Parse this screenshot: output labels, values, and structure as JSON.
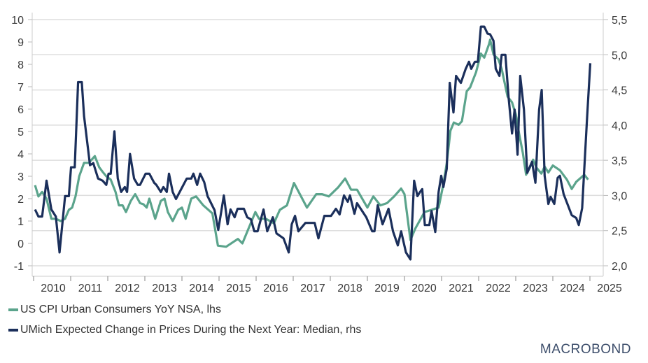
{
  "chart_data": {
    "type": "line",
    "title": "",
    "xlabel": "",
    "x_ticks": [
      "2010",
      "2011",
      "2012",
      "2013",
      "2014",
      "2015",
      "2016",
      "2017",
      "2018",
      "2019",
      "2020",
      "2021",
      "2022",
      "2023",
      "2024",
      "2025"
    ],
    "xlim": [
      2010,
      2025.3
    ],
    "y_left": {
      "ylim": [
        -1,
        10
      ],
      "ticks": [
        "-1",
        "0",
        "1",
        "2",
        "3",
        "4",
        "5",
        "6",
        "7",
        "8",
        "9",
        "10"
      ]
    },
    "y_right": {
      "ylim": [
        2.0,
        5.5
      ],
      "ticks": [
        "2,0",
        "2,5",
        "3,0",
        "3,5",
        "4,0",
        "4,5",
        "5,0",
        "5,5"
      ]
    },
    "grid": true,
    "legend_placement": "bottom-left",
    "series": [
      {
        "name": "US CPI Urban Consumers YoY NSA, lhs",
        "axis": "left",
        "color": "#5ba48c",
        "points": [
          [
            2010.04,
            2.6
          ],
          [
            2010.13,
            2.1
          ],
          [
            2010.23,
            2.3
          ],
          [
            2010.35,
            2.0
          ],
          [
            2010.48,
            1.1
          ],
          [
            2010.6,
            1.1
          ],
          [
            2010.73,
            1.0
          ],
          [
            2010.85,
            1.1
          ],
          [
            2010.95,
            1.5
          ],
          [
            2011.04,
            1.6
          ],
          [
            2011.13,
            2.1
          ],
          [
            2011.23,
            3.0
          ],
          [
            2011.36,
            3.6
          ],
          [
            2011.49,
            3.6
          ],
          [
            2011.65,
            3.9
          ],
          [
            2011.77,
            3.4
          ],
          [
            2011.86,
            3.2
          ],
          [
            2011.96,
            3.0
          ],
          [
            2012.08,
            2.85
          ],
          [
            2012.21,
            2.3
          ],
          [
            2012.3,
            1.7
          ],
          [
            2012.4,
            1.7
          ],
          [
            2012.49,
            1.4
          ],
          [
            2012.62,
            1.9
          ],
          [
            2012.74,
            2.2
          ],
          [
            2012.87,
            1.8
          ],
          [
            2012.96,
            1.75
          ],
          [
            2013.05,
            1.6
          ],
          [
            2013.12,
            2.0
          ],
          [
            2013.28,
            1.1
          ],
          [
            2013.43,
            1.9
          ],
          [
            2013.53,
            2.0
          ],
          [
            2013.62,
            1.4
          ],
          [
            2013.75,
            1.0
          ],
          [
            2013.9,
            1.5
          ],
          [
            2014.0,
            1.6
          ],
          [
            2014.1,
            1.1
          ],
          [
            2014.25,
            2.0
          ],
          [
            2014.38,
            2.1
          ],
          [
            2014.57,
            1.71
          ],
          [
            2014.82,
            1.34
          ],
          [
            2014.97,
            -0.1
          ],
          [
            2015.19,
            -0.15
          ],
          [
            2015.51,
            0.2
          ],
          [
            2015.63,
            0.0
          ],
          [
            2015.98,
            1.4
          ],
          [
            2016.08,
            1.1
          ],
          [
            2016.26,
            1.1
          ],
          [
            2016.48,
            0.9
          ],
          [
            2016.64,
            1.5
          ],
          [
            2016.83,
            1.7
          ],
          [
            2017.02,
            2.7
          ],
          [
            2017.37,
            1.6
          ],
          [
            2017.62,
            2.2
          ],
          [
            2017.78,
            2.2
          ],
          [
            2017.96,
            2.1
          ],
          [
            2018.21,
            2.5
          ],
          [
            2018.4,
            2.9
          ],
          [
            2018.56,
            2.4
          ],
          [
            2018.72,
            2.4
          ],
          [
            2019.0,
            1.6
          ],
          [
            2019.16,
            2.1
          ],
          [
            2019.35,
            1.7
          ],
          [
            2019.53,
            1.8
          ],
          [
            2019.72,
            2.1
          ],
          [
            2019.91,
            2.45
          ],
          [
            2020.0,
            2.2
          ],
          [
            2020.16,
            0.15
          ],
          [
            2020.29,
            0.66
          ],
          [
            2020.54,
            1.4
          ],
          [
            2020.73,
            1.5
          ],
          [
            2020.92,
            1.6
          ],
          [
            2021.05,
            2.65
          ],
          [
            2021.14,
            3.58
          ],
          [
            2021.24,
            5.04
          ],
          [
            2021.33,
            5.4
          ],
          [
            2021.46,
            5.3
          ],
          [
            2021.55,
            5.46
          ],
          [
            2021.68,
            6.8
          ],
          [
            2021.77,
            6.97
          ],
          [
            2021.93,
            7.65
          ],
          [
            2022.06,
            8.48
          ],
          [
            2022.15,
            8.3
          ],
          [
            2022.28,
            8.9
          ],
          [
            2022.31,
            9.1
          ],
          [
            2022.4,
            8.44
          ],
          [
            2022.53,
            8.23
          ],
          [
            2022.62,
            7.8
          ],
          [
            2022.78,
            6.56
          ],
          [
            2022.9,
            6.3
          ],
          [
            2023.0,
            5.77
          ],
          [
            2023.09,
            4.9
          ],
          [
            2023.19,
            4.05
          ],
          [
            2023.28,
            3.07
          ],
          [
            2023.38,
            3.38
          ],
          [
            2023.47,
            3.74
          ],
          [
            2023.56,
            3.38
          ],
          [
            2023.69,
            3.12
          ],
          [
            2023.78,
            3.43
          ],
          [
            2023.88,
            3.17
          ],
          [
            2024.0,
            3.48
          ],
          [
            2024.19,
            3.27
          ],
          [
            2024.38,
            2.85
          ],
          [
            2024.51,
            2.43
          ],
          [
            2024.63,
            2.75
          ],
          [
            2024.85,
            3.07
          ],
          [
            2024.95,
            2.85
          ]
        ]
      },
      {
        "name": "UMich Expected Change in Prices During the Next Year: Median, rhs",
        "axis": "right",
        "color": "#1b2f5b",
        "points": [
          [
            2010.04,
            2.8
          ],
          [
            2010.13,
            2.7
          ],
          [
            2010.23,
            2.7
          ],
          [
            2010.35,
            3.21
          ],
          [
            2010.48,
            2.8
          ],
          [
            2010.6,
            2.7
          ],
          [
            2010.7,
            2.19
          ],
          [
            2010.85,
            2.99
          ],
          [
            2010.95,
            2.99
          ],
          [
            2011.01,
            3.4
          ],
          [
            2011.11,
            3.4
          ],
          [
            2011.2,
            4.61
          ],
          [
            2011.3,
            4.61
          ],
          [
            2011.36,
            4.13
          ],
          [
            2011.52,
            3.43
          ],
          [
            2011.61,
            3.46
          ],
          [
            2011.74,
            3.24
          ],
          [
            2011.86,
            3.21
          ],
          [
            2011.96,
            3.15
          ],
          [
            2012.02,
            3.31
          ],
          [
            2012.08,
            3.31
          ],
          [
            2012.18,
            3.91
          ],
          [
            2012.27,
            3.24
          ],
          [
            2012.36,
            3.05
          ],
          [
            2012.46,
            3.12
          ],
          [
            2012.52,
            3.05
          ],
          [
            2012.6,
            3.59
          ],
          [
            2012.71,
            3.24
          ],
          [
            2012.81,
            3.15
          ],
          [
            2012.87,
            3.15
          ],
          [
            2013.02,
            3.31
          ],
          [
            2013.12,
            3.31
          ],
          [
            2013.25,
            3.18
          ],
          [
            2013.31,
            3.15
          ],
          [
            2013.43,
            3.05
          ],
          [
            2013.5,
            3.12
          ],
          [
            2013.59,
            3.05
          ],
          [
            2013.65,
            3.31
          ],
          [
            2013.75,
            3.05
          ],
          [
            2013.84,
            2.95
          ],
          [
            2013.97,
            3.08
          ],
          [
            2014.13,
            3.24
          ],
          [
            2014.25,
            3.24
          ],
          [
            2014.31,
            3.31
          ],
          [
            2014.41,
            3.15
          ],
          [
            2014.49,
            3.31
          ],
          [
            2014.6,
            3.19
          ],
          [
            2014.69,
            2.99
          ],
          [
            2014.88,
            2.79
          ],
          [
            2014.98,
            2.51
          ],
          [
            2015.13,
            3.0
          ],
          [
            2015.23,
            2.59
          ],
          [
            2015.31,
            2.8
          ],
          [
            2015.42,
            2.69
          ],
          [
            2015.5,
            2.81
          ],
          [
            2015.67,
            2.81
          ],
          [
            2015.76,
            2.69
          ],
          [
            2015.86,
            2.66
          ],
          [
            2015.95,
            2.49
          ],
          [
            2016.04,
            2.49
          ],
          [
            2016.2,
            2.8
          ],
          [
            2016.3,
            2.49
          ],
          [
            2016.45,
            2.69
          ],
          [
            2016.55,
            2.46
          ],
          [
            2016.74,
            2.39
          ],
          [
            2016.88,
            2.19
          ],
          [
            2016.96,
            2.59
          ],
          [
            2017.05,
            2.71
          ],
          [
            2017.14,
            2.49
          ],
          [
            2017.33,
            2.61
          ],
          [
            2017.58,
            2.61
          ],
          [
            2017.68,
            2.39
          ],
          [
            2017.84,
            2.71
          ],
          [
            2018.02,
            2.71
          ],
          [
            2018.15,
            2.81
          ],
          [
            2018.25,
            2.73
          ],
          [
            2018.37,
            3.0
          ],
          [
            2018.47,
            2.91
          ],
          [
            2018.53,
            3.0
          ],
          [
            2018.65,
            2.74
          ],
          [
            2018.72,
            2.89
          ],
          [
            2018.97,
            2.69
          ],
          [
            2019.13,
            2.49
          ],
          [
            2019.19,
            2.49
          ],
          [
            2019.28,
            2.86
          ],
          [
            2019.41,
            2.59
          ],
          [
            2019.57,
            2.81
          ],
          [
            2019.69,
            2.49
          ],
          [
            2019.82,
            2.29
          ],
          [
            2019.91,
            2.49
          ],
          [
            2020.04,
            2.19
          ],
          [
            2020.16,
            2.09
          ],
          [
            2020.26,
            3.21
          ],
          [
            2020.35,
            2.99
          ],
          [
            2020.42,
            3.05
          ],
          [
            2020.48,
            3.09
          ],
          [
            2020.55,
            2.58
          ],
          [
            2020.67,
            2.58
          ],
          [
            2020.73,
            2.78
          ],
          [
            2020.83,
            2.48
          ],
          [
            2020.92,
            3.05
          ],
          [
            2020.99,
            3.28
          ],
          [
            2021.05,
            3.12
          ],
          [
            2021.14,
            3.38
          ],
          [
            2021.22,
            4.6
          ],
          [
            2021.32,
            4.18
          ],
          [
            2021.39,
            4.7
          ],
          [
            2021.52,
            4.6
          ],
          [
            2021.65,
            4.8
          ],
          [
            2021.74,
            4.9
          ],
          [
            2021.8,
            4.8
          ],
          [
            2021.9,
            4.9
          ],
          [
            2021.98,
            4.9
          ],
          [
            2022.06,
            5.4
          ],
          [
            2022.15,
            5.4
          ],
          [
            2022.24,
            5.3
          ],
          [
            2022.31,
            5.29
          ],
          [
            2022.4,
            5.2
          ],
          [
            2022.46,
            4.8
          ],
          [
            2022.56,
            4.7
          ],
          [
            2022.62,
            5.0
          ],
          [
            2022.72,
            5.0
          ],
          [
            2022.81,
            4.38
          ],
          [
            2022.9,
            3.88
          ],
          [
            2022.97,
            4.22
          ],
          [
            2023.05,
            3.58
          ],
          [
            2023.12,
            4.7
          ],
          [
            2023.22,
            4.22
          ],
          [
            2023.31,
            3.32
          ],
          [
            2023.44,
            3.48
          ],
          [
            2023.53,
            3.18
          ],
          [
            2023.63,
            4.22
          ],
          [
            2023.7,
            4.5
          ],
          [
            2023.78,
            3.28
          ],
          [
            2023.88,
            2.88
          ],
          [
            2023.94,
            2.98
          ],
          [
            2024.04,
            2.88
          ],
          [
            2024.13,
            3.25
          ],
          [
            2024.19,
            3.28
          ],
          [
            2024.29,
            3.02
          ],
          [
            2024.51,
            2.72
          ],
          [
            2024.63,
            2.68
          ],
          [
            2024.7,
            2.58
          ],
          [
            2024.79,
            2.82
          ],
          [
            2024.92,
            4.08
          ],
          [
            2025.01,
            4.88
          ]
        ]
      }
    ]
  },
  "legend": {
    "cpi": "US CPI Urban Consumers YoY NSA, lhs",
    "umich": "UMich Expected Change in Prices During the Next Year: Median, rhs"
  },
  "branding": {
    "logo": "MACROBOND"
  }
}
